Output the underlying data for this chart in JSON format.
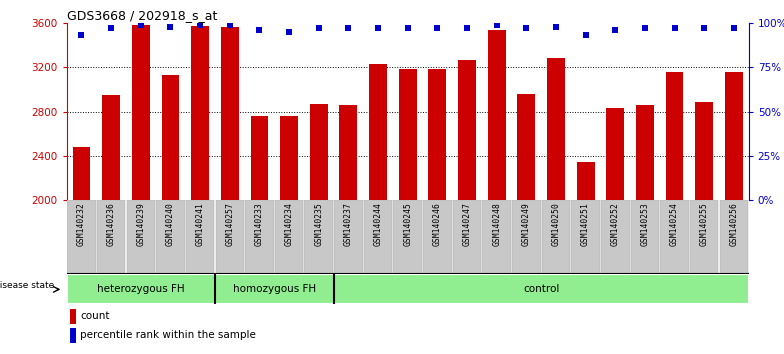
{
  "title": "GDS3668 / 202918_s_at",
  "samples": [
    "GSM140232",
    "GSM140236",
    "GSM140239",
    "GSM140240",
    "GSM140241",
    "GSM140257",
    "GSM140233",
    "GSM140234",
    "GSM140235",
    "GSM140237",
    "GSM140244",
    "GSM140245",
    "GSM140246",
    "GSM140247",
    "GSM140248",
    "GSM140249",
    "GSM140250",
    "GSM140251",
    "GSM140252",
    "GSM140253",
    "GSM140254",
    "GSM140255",
    "GSM140256"
  ],
  "counts": [
    2480,
    2950,
    3580,
    3130,
    3570,
    3560,
    2760,
    2760,
    2870,
    2860,
    3230,
    3180,
    3180,
    3270,
    3540,
    2960,
    3280,
    2340,
    2830,
    2860,
    3160,
    2890,
    3160
  ],
  "percentile_ranks": [
    93,
    97,
    99,
    98,
    99,
    99,
    96,
    95,
    97,
    97,
    97,
    97,
    97,
    97,
    99,
    97,
    98,
    93,
    96,
    97,
    97,
    97,
    97
  ],
  "bar_color": "#cc0000",
  "dot_color": "#0000cc",
  "ylim_left": [
    2000,
    3600
  ],
  "ylim_right": [
    0,
    100
  ],
  "yticks_left": [
    2000,
    2400,
    2800,
    3200,
    3600
  ],
  "yticks_right": [
    0,
    25,
    50,
    75,
    100
  ],
  "groups": [
    {
      "label": "heterozygous FH",
      "start": 0,
      "end": 5
    },
    {
      "label": "homozygous FH",
      "start": 5,
      "end": 9
    },
    {
      "label": "control",
      "start": 9,
      "end": 23
    }
  ],
  "group_boundaries": [
    5,
    9
  ],
  "disease_state_label": "disease state",
  "legend_count_label": "count",
  "legend_percentile_label": "percentile rank within the sample",
  "background_color": "#ffffff",
  "gray_tick_color": "#c8c8c8",
  "green_color": "#90EE90",
  "grid_yticks": [
    2400,
    2800,
    3200
  ]
}
